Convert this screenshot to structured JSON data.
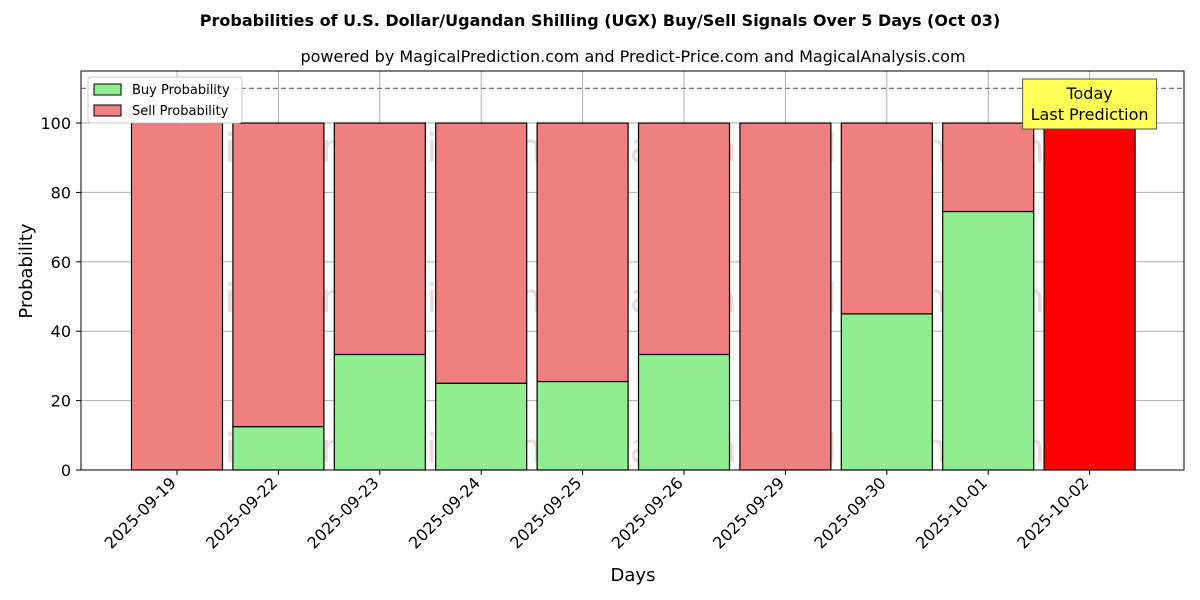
{
  "chart_data": {
    "type": "bar",
    "stacked": true,
    "title": "Probabilities of U.S. Dollar/Ugandan Shilling (UGX) Buy/Sell Signals Over 5 Days (Oct 03)",
    "subtitle": "powered by MagicalPrediction.com and Predict-Price.com and MagicalAnalysis.com",
    "xlabel": "Days",
    "ylabel": "Probability",
    "ylim": [
      0,
      115
    ],
    "yticks": [
      0,
      20,
      40,
      60,
      80,
      100
    ],
    "reference_line": 110,
    "grid": true,
    "legend_position": "top-left",
    "categories": [
      "2025-09-19",
      "2025-09-22",
      "2025-09-23",
      "2025-09-24",
      "2025-09-25",
      "2025-09-26",
      "2025-09-29",
      "2025-09-30",
      "2025-10-01",
      "2025-10-02"
    ],
    "series": [
      {
        "name": "Buy Probability",
        "color": "#90ee90",
        "values": [
          0,
          12.5,
          33.3,
          25,
          25.5,
          33.3,
          0,
          45,
          74.5,
          0
        ]
      },
      {
        "name": "Sell Probability",
        "color": "#f08080",
        "values": [
          100,
          87.5,
          66.7,
          75,
          74.5,
          66.7,
          100,
          55,
          25.5,
          100
        ]
      }
    ],
    "highlight": {
      "index": 9,
      "color": "#ff0000"
    },
    "annotation": {
      "lines": [
        "Today",
        "Last Prediction"
      ],
      "background": "#ffff55"
    },
    "watermarks": [
      "MagicalAnalysis.com",
      "MagicalPrediction.com"
    ]
  }
}
